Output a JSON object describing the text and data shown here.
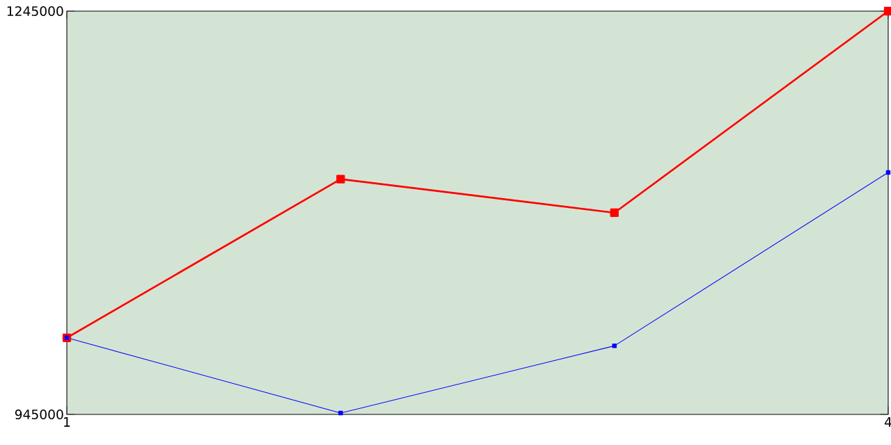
{
  "chart_data": {
    "type": "line",
    "x": [
      1,
      2,
      3,
      4
    ],
    "xlim": [
      1,
      4
    ],
    "xticks": [
      1,
      4
    ],
    "ylim": [
      945000,
      1245000
    ],
    "yticks": [
      945000,
      1245000
    ],
    "marker": "square",
    "series": [
      {
        "color": "#ff0000",
        "values": [
          1002000,
          1120000,
          1095000,
          1245000
        ]
      },
      {
        "color": "#0000ff",
        "values": [
          1002000,
          946000,
          996000,
          1125000
        ]
      }
    ]
  }
}
